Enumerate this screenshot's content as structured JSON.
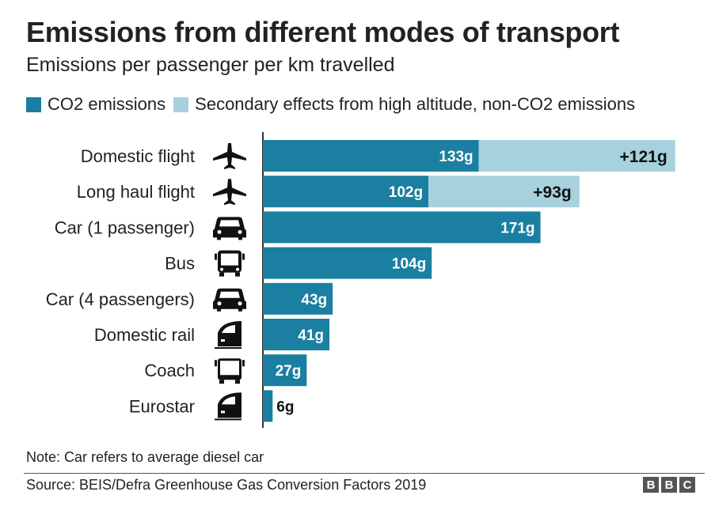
{
  "title": "Emissions from different modes of transport",
  "subtitle": "Emissions per passenger per km travelled",
  "colors": {
    "co2": "#1a7fa0",
    "secondary": "#a6d1dd",
    "text": "#222222"
  },
  "legend": [
    {
      "label": "CO2 emissions",
      "color": "#1a7fa0"
    },
    {
      "label": "Secondary effects from high altitude, non-CO2 emissions",
      "color": "#a6d1dd"
    }
  ],
  "chart_data": {
    "type": "bar",
    "orientation": "horizontal",
    "stacked": true,
    "categories": [
      "Domestic flight",
      "Long haul flight",
      "Car (1 passenger)",
      "Bus",
      "Car (4 passengers)",
      "Domestic rail",
      "Coach",
      "Eurostar"
    ],
    "icons": [
      "plane-icon",
      "plane-icon",
      "car-icon",
      "bus-icon",
      "car-icon",
      "train-icon",
      "coach-icon",
      "train-icon"
    ],
    "series": [
      {
        "name": "CO2 emissions",
        "values": [
          133,
          102,
          171,
          104,
          43,
          41,
          27,
          6
        ],
        "labels": [
          "133g",
          "102g",
          "171g",
          "104g",
          "43g",
          "41g",
          "27g",
          "6g"
        ]
      },
      {
        "name": "Secondary effects from high altitude, non-CO2 emissions",
        "values": [
          121,
          93,
          null,
          null,
          null,
          null,
          null,
          null
        ],
        "labels": [
          "+121g",
          "+93g",
          "",
          "",
          "",
          "",
          "",
          ""
        ]
      }
    ],
    "xlim": [
      0,
      254
    ],
    "grid": false,
    "legend_position": "top"
  },
  "note": "Note: Car refers to average diesel car",
  "source": "Source: BEIS/Defra Greenhouse Gas Conversion Factors 2019",
  "logo": [
    "B",
    "B",
    "C"
  ]
}
